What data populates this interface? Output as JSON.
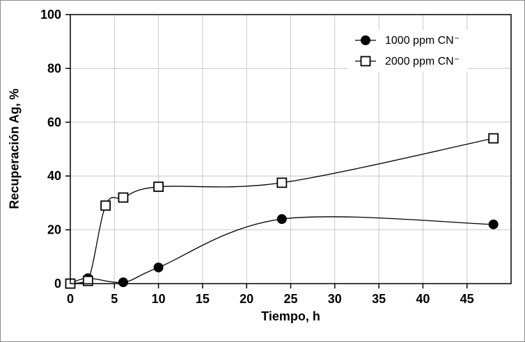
{
  "figure": {
    "background": "#ffffff",
    "border_color": "#8a8a8a"
  },
  "chart_data": {
    "type": "line",
    "title": "",
    "xlabel": "Tiempo, h",
    "ylabel": "Recuperación Ag, %",
    "xlim": [
      0,
      50
    ],
    "ylim": [
      0,
      100
    ],
    "xticks": [
      0,
      5,
      10,
      15,
      20,
      25,
      30,
      35,
      40,
      45
    ],
    "yticks": [
      0,
      20,
      40,
      60,
      80,
      100
    ],
    "grid": true,
    "grid_color": "#c9c9c9",
    "axis_color": "#000000",
    "legend_position": "top-right",
    "series": [
      {
        "name": "1000 ppm CN⁻",
        "marker": "filled-circle",
        "color": "#000000",
        "x": [
          0,
          2,
          6,
          10,
          24,
          48
        ],
        "y": [
          0,
          2,
          0.5,
          6,
          24,
          22
        ]
      },
      {
        "name": "2000 ppm CN⁻",
        "marker": "open-square",
        "color": "#000000",
        "x": [
          0,
          2,
          4,
          6,
          10,
          24,
          48
        ],
        "y": [
          0,
          1,
          29,
          32,
          36,
          37.5,
          54
        ]
      }
    ]
  }
}
